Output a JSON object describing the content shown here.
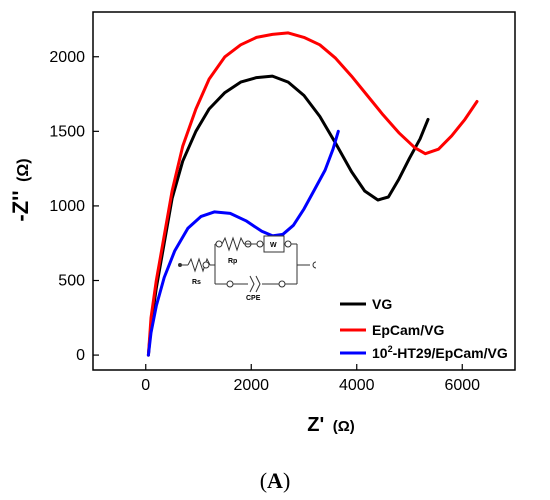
{
  "chart_data": {
    "type": "line",
    "xlabel": "Z'",
    "xlabel_unit": "(Ω)",
    "ylabel": "-Z''",
    "ylabel_unit": "(Ω)",
    "xlim": [
      -1000,
      7000
    ],
    "ylim": [
      -100,
      2300
    ],
    "xticks": [
      0,
      2000,
      4000,
      6000
    ],
    "yticks": [
      0,
      500,
      1000,
      1500,
      2000
    ],
    "grid": false,
    "legend_position": "bottom-right",
    "panel_label_open": "(",
    "panel_label_letter": "A",
    "panel_label_close": ")",
    "series": [
      {
        "name": "VG",
        "color": "#000000",
        "points": [
          [
            50,
            0
          ],
          [
            100,
            200
          ],
          [
            200,
            450
          ],
          [
            350,
            750
          ],
          [
            500,
            1050
          ],
          [
            700,
            1300
          ],
          [
            950,
            1500
          ],
          [
            1200,
            1650
          ],
          [
            1500,
            1760
          ],
          [
            1800,
            1830
          ],
          [
            2100,
            1860
          ],
          [
            2400,
            1870
          ],
          [
            2700,
            1830
          ],
          [
            3000,
            1740
          ],
          [
            3300,
            1600
          ],
          [
            3600,
            1420
          ],
          [
            3900,
            1230
          ],
          [
            4150,
            1100
          ],
          [
            4400,
            1040
          ],
          [
            4600,
            1060
          ],
          [
            4800,
            1180
          ],
          [
            5000,
            1320
          ],
          [
            5200,
            1450
          ],
          [
            5350,
            1580
          ]
        ]
      },
      {
        "name": "EpCam/VG",
        "color": "#ff0000",
        "points": [
          [
            50,
            0
          ],
          [
            100,
            250
          ],
          [
            200,
            500
          ],
          [
            350,
            800
          ],
          [
            500,
            1100
          ],
          [
            700,
            1400
          ],
          [
            950,
            1650
          ],
          [
            1200,
            1850
          ],
          [
            1500,
            2000
          ],
          [
            1800,
            2080
          ],
          [
            2100,
            2130
          ],
          [
            2400,
            2150
          ],
          [
            2700,
            2160
          ],
          [
            3000,
            2130
          ],
          [
            3300,
            2080
          ],
          [
            3600,
            1990
          ],
          [
            3900,
            1870
          ],
          [
            4200,
            1740
          ],
          [
            4500,
            1610
          ],
          [
            4800,
            1490
          ],
          [
            5100,
            1390
          ],
          [
            5300,
            1350
          ],
          [
            5550,
            1380
          ],
          [
            5800,
            1470
          ],
          [
            6050,
            1580
          ],
          [
            6280,
            1700
          ]
        ]
      },
      {
        "name": "10²-HT29/EpCam/VG",
        "name_base": "10",
        "name_sup": "2",
        "name_rest": "-HT29/EpCam/VG",
        "color": "#0000ff",
        "points": [
          [
            50,
            0
          ],
          [
            100,
            150
          ],
          [
            200,
            330
          ],
          [
            350,
            520
          ],
          [
            550,
            700
          ],
          [
            800,
            850
          ],
          [
            1050,
            930
          ],
          [
            1300,
            960
          ],
          [
            1600,
            950
          ],
          [
            1900,
            900
          ],
          [
            2200,
            830
          ],
          [
            2400,
            800
          ],
          [
            2600,
            810
          ],
          [
            2800,
            870
          ],
          [
            3000,
            980
          ],
          [
            3200,
            1110
          ],
          [
            3400,
            1240
          ],
          [
            3550,
            1380
          ],
          [
            3650,
            1500
          ]
        ]
      }
    ],
    "inset_circuit": {
      "labels": [
        "Rs",
        "Rp",
        "W",
        "CPE"
      ]
    }
  }
}
